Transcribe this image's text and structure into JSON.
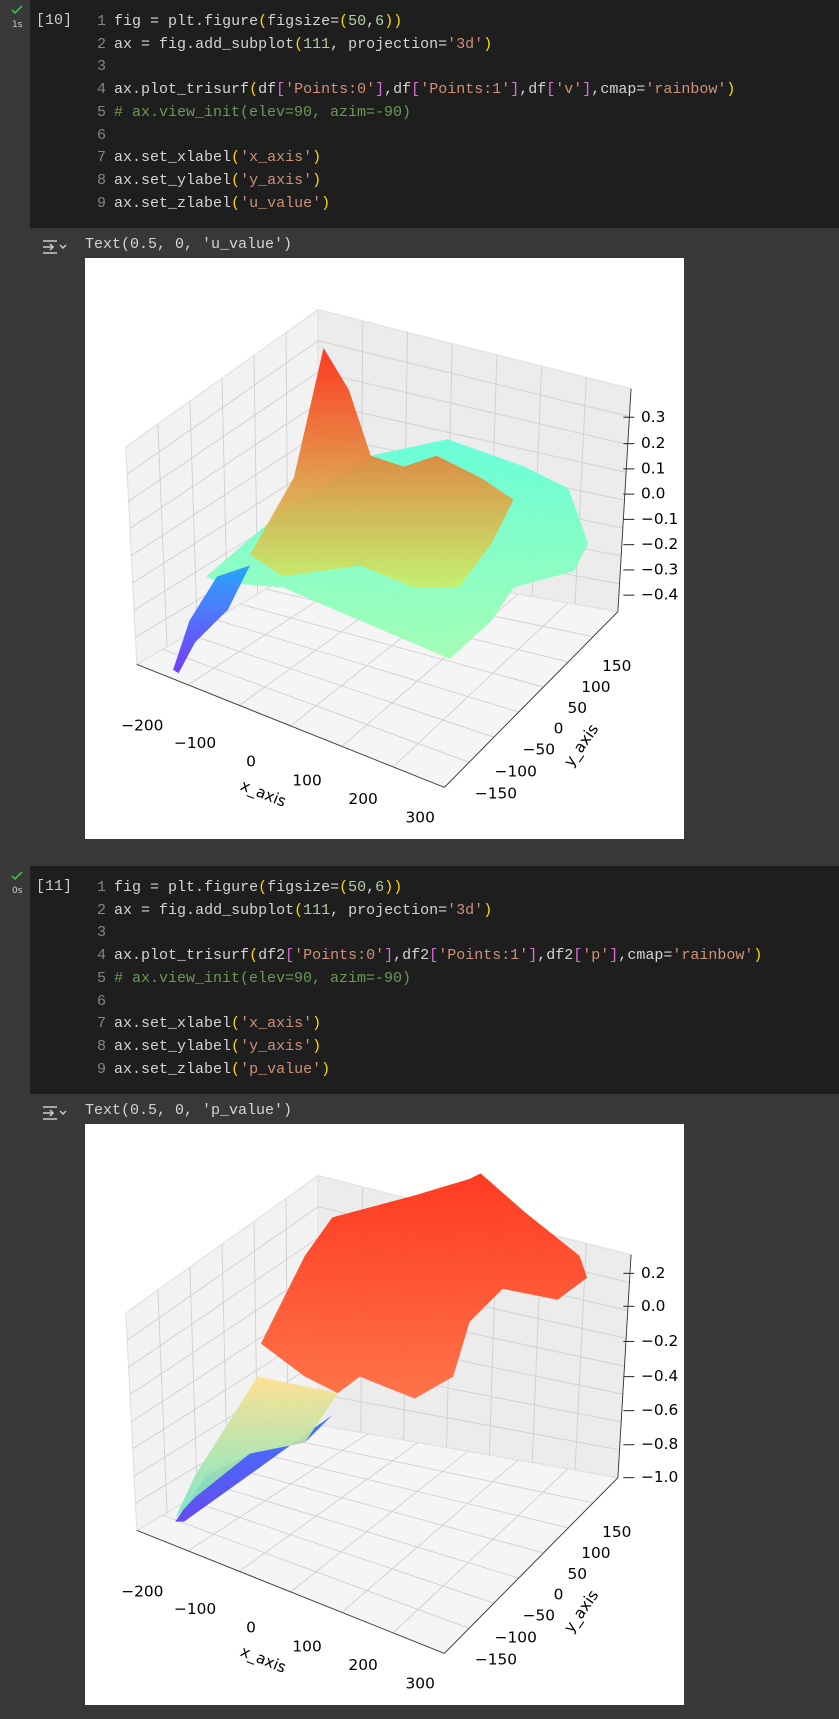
{
  "cells": [
    {
      "status_time": "1s",
      "count": "[10]",
      "code": [
        {
          "n": 1,
          "text": "fig = plt.figure(figsize=(50,6))"
        },
        {
          "n": 2,
          "text": "ax = fig.add_subplot(111, projection='3d')"
        },
        {
          "n": 3,
          "text": ""
        },
        {
          "n": 4,
          "text": "ax.plot_trisurf(df['Points:0'],df['Points:1'],df['v'],cmap='rainbow')"
        },
        {
          "n": 5,
          "text": "# ax.view_init(elev=90, azim=-90)"
        },
        {
          "n": 6,
          "text": ""
        },
        {
          "n": 7,
          "text": "ax.set_xlabel('x_axis')"
        },
        {
          "n": 8,
          "text": "ax.set_ylabel('y_axis')"
        },
        {
          "n": 9,
          "text": "ax.set_zlabel('u_value')"
        }
      ],
      "output": {
        "text": "Text(0.5, 0, 'u_value')",
        "plot": {
          "x_label": "x_axis",
          "y_label": "y_axis",
          "x_ticks": [
            "−200",
            "−100",
            "0",
            "100",
            "200",
            "300"
          ],
          "y_ticks": [
            "150",
            "100",
            "50",
            "0",
            "−50",
            "−100",
            "−150"
          ],
          "z_ticks": [
            "0.3",
            "0.2",
            "0.1",
            "0.0",
            "−0.1",
            "−0.2",
            "−0.3",
            "−0.4"
          ]
        }
      }
    },
    {
      "status_time": "0s",
      "count": "[11]",
      "code": [
        {
          "n": 1,
          "text": "fig = plt.figure(figsize=(50,6))"
        },
        {
          "n": 2,
          "text": "ax = fig.add_subplot(111, projection='3d')"
        },
        {
          "n": 3,
          "text": ""
        },
        {
          "n": 4,
          "text": "ax.plot_trisurf(df2['Points:0'],df2['Points:1'],df2['p'],cmap='rainbow')"
        },
        {
          "n": 5,
          "text": "# ax.view_init(elev=90, azim=-90)"
        },
        {
          "n": 6,
          "text": ""
        },
        {
          "n": 7,
          "text": "ax.set_xlabel('x_axis')"
        },
        {
          "n": 8,
          "text": "ax.set_ylabel('y_axis')"
        },
        {
          "n": 9,
          "text": "ax.set_zlabel('p_value')"
        }
      ],
      "output": {
        "text": "Text(0.5, 0, 'p_value')",
        "plot": {
          "x_label": "x_axis",
          "y_label": "y_axis",
          "x_ticks": [
            "−200",
            "−100",
            "0",
            "100",
            "200",
            "300"
          ],
          "y_ticks": [
            "150",
            "100",
            "50",
            "0",
            "−50",
            "−100",
            "−150"
          ],
          "z_ticks": [
            "0.2",
            "0.0",
            "−0.2",
            "−0.4",
            "−0.6",
            "−0.8",
            "−1.0"
          ]
        }
      }
    }
  ]
}
